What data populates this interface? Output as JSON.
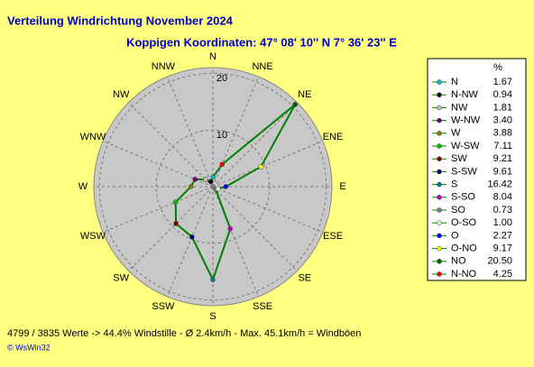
{
  "chart_data": {
    "type": "radar",
    "title": "Verteilung Windrichtung   November 2024",
    "subtitle": "Koppigen  Koordinaten: 47° 08' 10'' N  7° 36' 23'' E",
    "categories": [
      "N",
      "NNE",
      "NE",
      "ENE",
      "E",
      "ESE",
      "SE",
      "SSE",
      "S",
      "SSW",
      "SW",
      "WSW",
      "W",
      "WNW",
      "NW",
      "NNW"
    ],
    "legend_title": "%",
    "legend_labels": [
      "N",
      "N-NW",
      "NW",
      "W-NW",
      "W",
      "W-SW",
      "SW",
      "S-SW",
      "S",
      "S-SO",
      "SO",
      "O-SO",
      "O",
      "O-NO",
      "NO",
      "N-NO"
    ],
    "values": [
      1.67,
      0.94,
      1.81,
      3.4,
      3.88,
      7.11,
      9.21,
      9.61,
      16.42,
      8.04,
      0.73,
      1.0,
      2.27,
      9.17,
      20.5,
      4.25
    ],
    "value_labels": [
      "1.67",
      "0.94",
      "1.81",
      "3.40",
      "3.88",
      "7.11",
      "9.21",
      "9.61",
      "16.42",
      "8.04",
      "0.73",
      "1.00",
      "2.27",
      "9.17",
      "20.50",
      "4.25"
    ],
    "colors": [
      "#00c0c0",
      "#000000",
      "#c0c0c0",
      "#800080",
      "#808000",
      "#00c000",
      "#800000",
      "#000080",
      "#008080",
      "#c000c0",
      "#808080",
      "#e0ffe0",
      "#0000ff",
      "#ffff00",
      "#006000",
      "#ff0000"
    ],
    "line_color": "#008000",
    "rlim": [
      0,
      21
    ],
    "rticks": [
      10,
      20
    ],
    "footer": "4799 / 3835 Werte  -> 44.4% Windstille   -   Ø 2.4km/h  -  Max. 45.1km/h = Windböen",
    "credit": "© WsWin32"
  }
}
